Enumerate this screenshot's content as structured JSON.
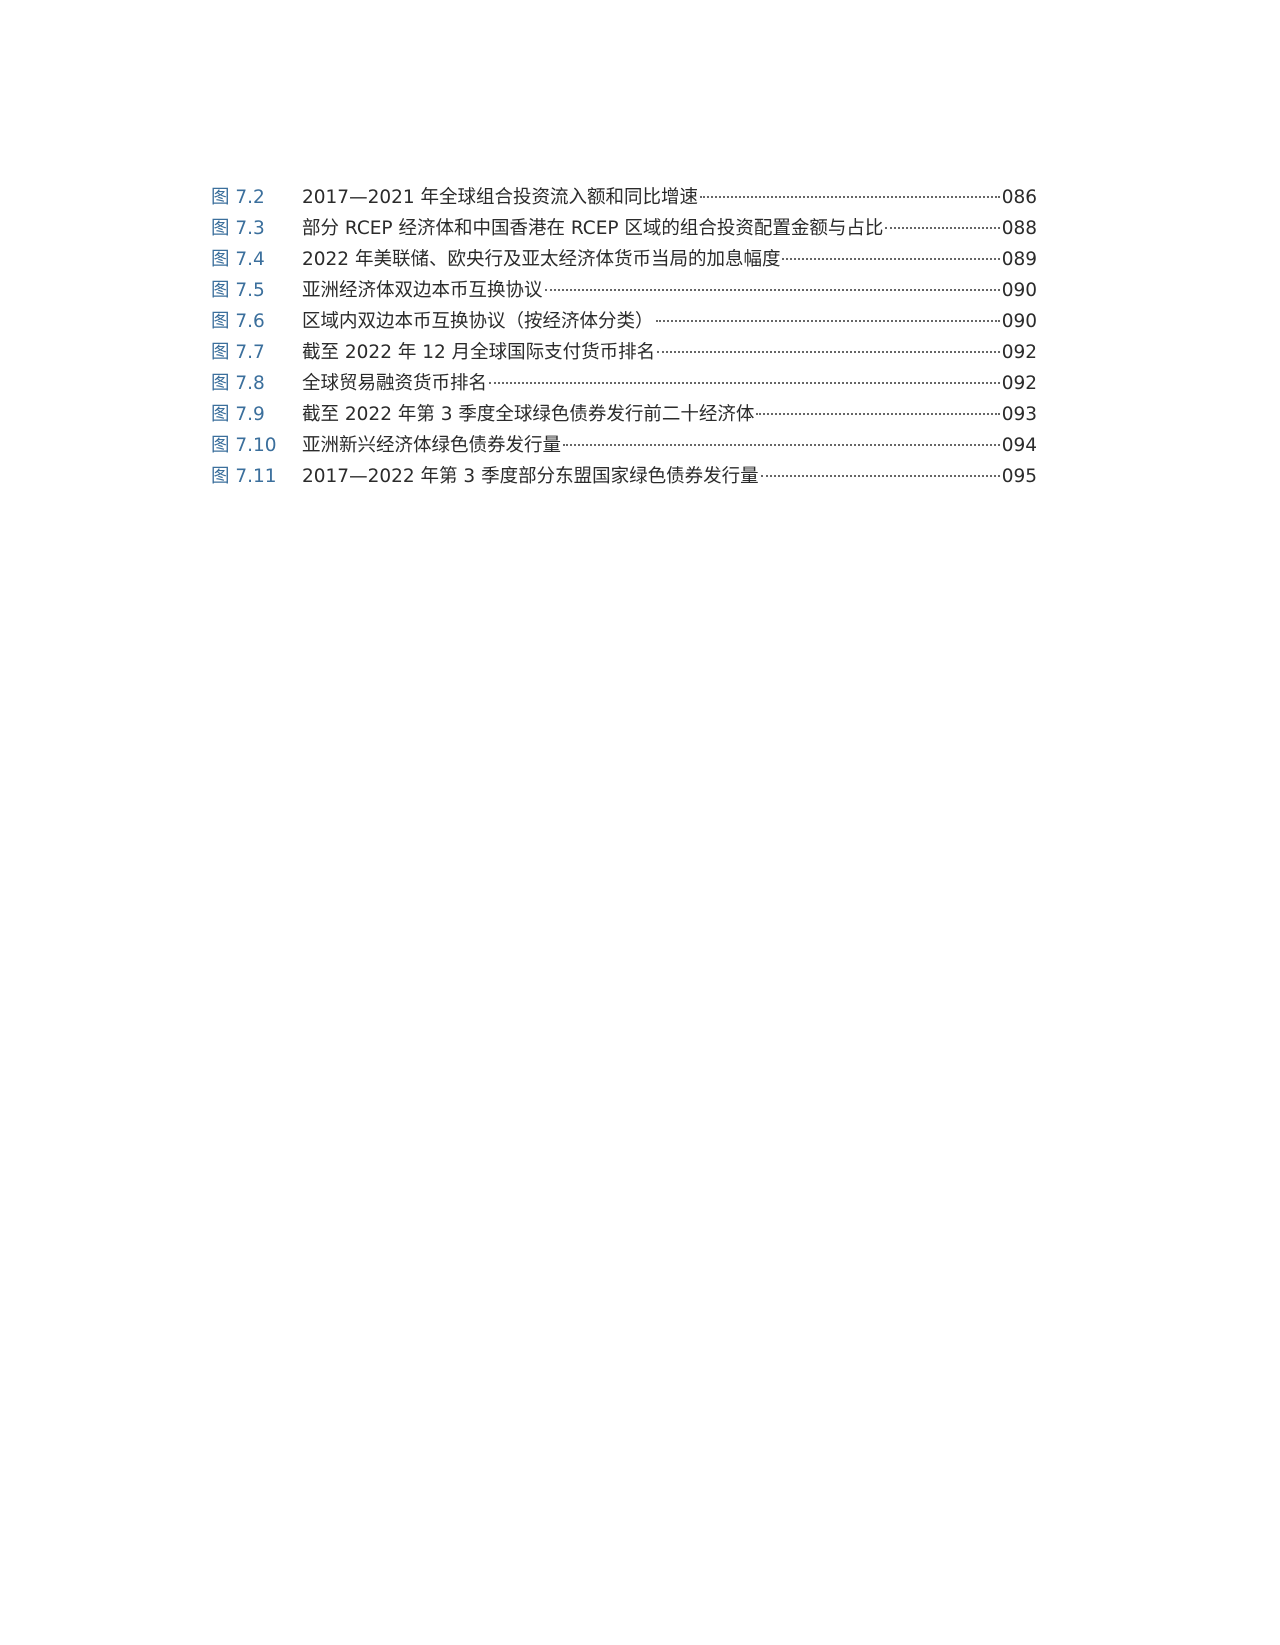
{
  "figures": [
    {
      "label": "图 7.2",
      "title": "2017—2021 年全球组合投资流入额和同比增速",
      "page": "086"
    },
    {
      "label": "图 7.3",
      "title": "部分 RCEP 经济体和中国香港在 RCEP 区域的组合投资配置金额与占比",
      "page": "088"
    },
    {
      "label": "图 7.4",
      "title": "2022 年美联储、欧央行及亚太经济体货币当局的加息幅度",
      "page": "089"
    },
    {
      "label": "图 7.5",
      "title": "亚洲经济体双边本币互换协议",
      "page": "090"
    },
    {
      "label": "图 7.6",
      "title": "区域内双边本币互换协议（按经济体分类）",
      "page": "090"
    },
    {
      "label": "图 7.7",
      "title": "截至 2022 年 12 月全球国际支付货币排名",
      "page": "092"
    },
    {
      "label": "图 7.8",
      "title": "全球贸易融资货币排名",
      "page": "092"
    },
    {
      "label": "图 7.9",
      "title": "截至 2022 年第 3 季度全球绿色债券发行前二十经济体",
      "page": "093"
    },
    {
      "label": "图 7.10",
      "title": "亚洲新兴经济体绿色债券发行量",
      "page": "094"
    },
    {
      "label": "图 7.11",
      "title": "2017—2022 年第 3 季度部分东盟国家绿色债券发行量",
      "page": "095"
    }
  ],
  "colors": {
    "label": "#3b6f9c",
    "text": "#2b2b2b"
  }
}
